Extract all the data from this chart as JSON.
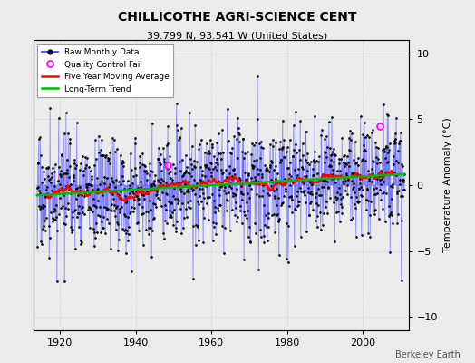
{
  "title": "CHILLICOTHE AGRI-SCIENCE CENT",
  "subtitle": "39.799 N, 93.541 W (United States)",
  "ylabel": "Temperature Anomaly (°C)",
  "credit": "Berkeley Earth",
  "ylim": [
    -11,
    11
  ],
  "yticks": [
    -10,
    -5,
    0,
    5,
    10
  ],
  "year_start": 1914,
  "year_end": 2011,
  "xlim_start": 1913,
  "xlim_end": 2012,
  "xticks": [
    1920,
    1940,
    1960,
    1980,
    2000
  ],
  "raw_color": "#3333ff",
  "ma_color": "#ff0000",
  "trend_color": "#00bb00",
  "qc_color": "#ff00ff",
  "bg_color": "#ebebeb",
  "seed": 17,
  "noise_amp": 2.5,
  "ma_window": 60,
  "qc_points": [
    [
      1948.5,
      1.5
    ],
    [
      2004.5,
      4.5
    ]
  ]
}
